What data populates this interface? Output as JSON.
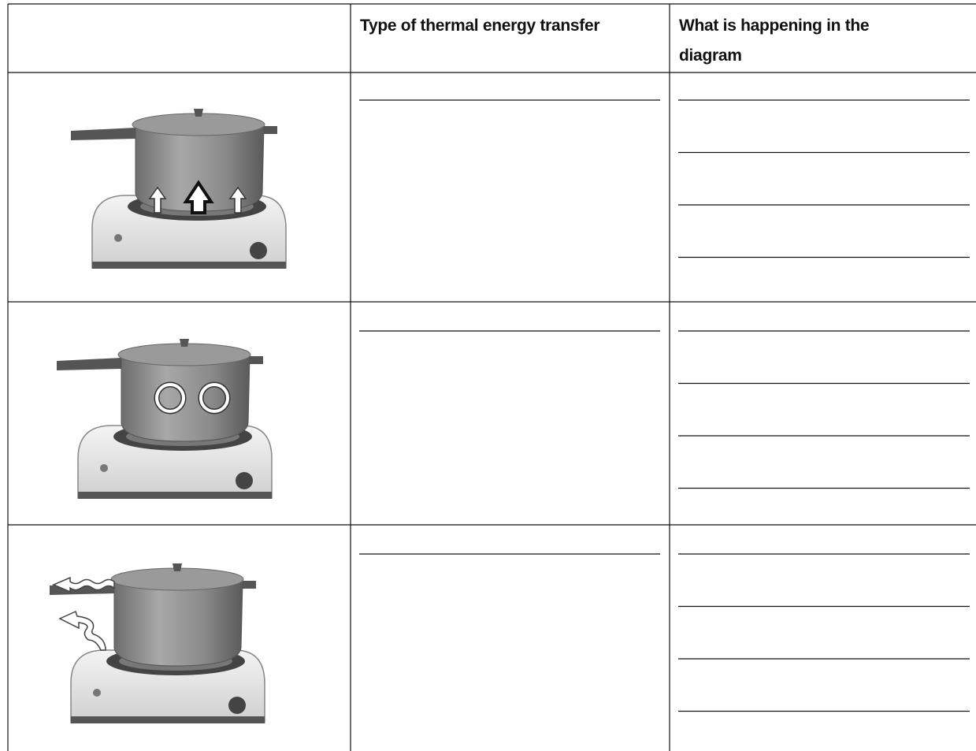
{
  "table": {
    "headers": [
      "Type of thermal energy transfer",
      "What is happening in the diagram"
    ]
  }
}
